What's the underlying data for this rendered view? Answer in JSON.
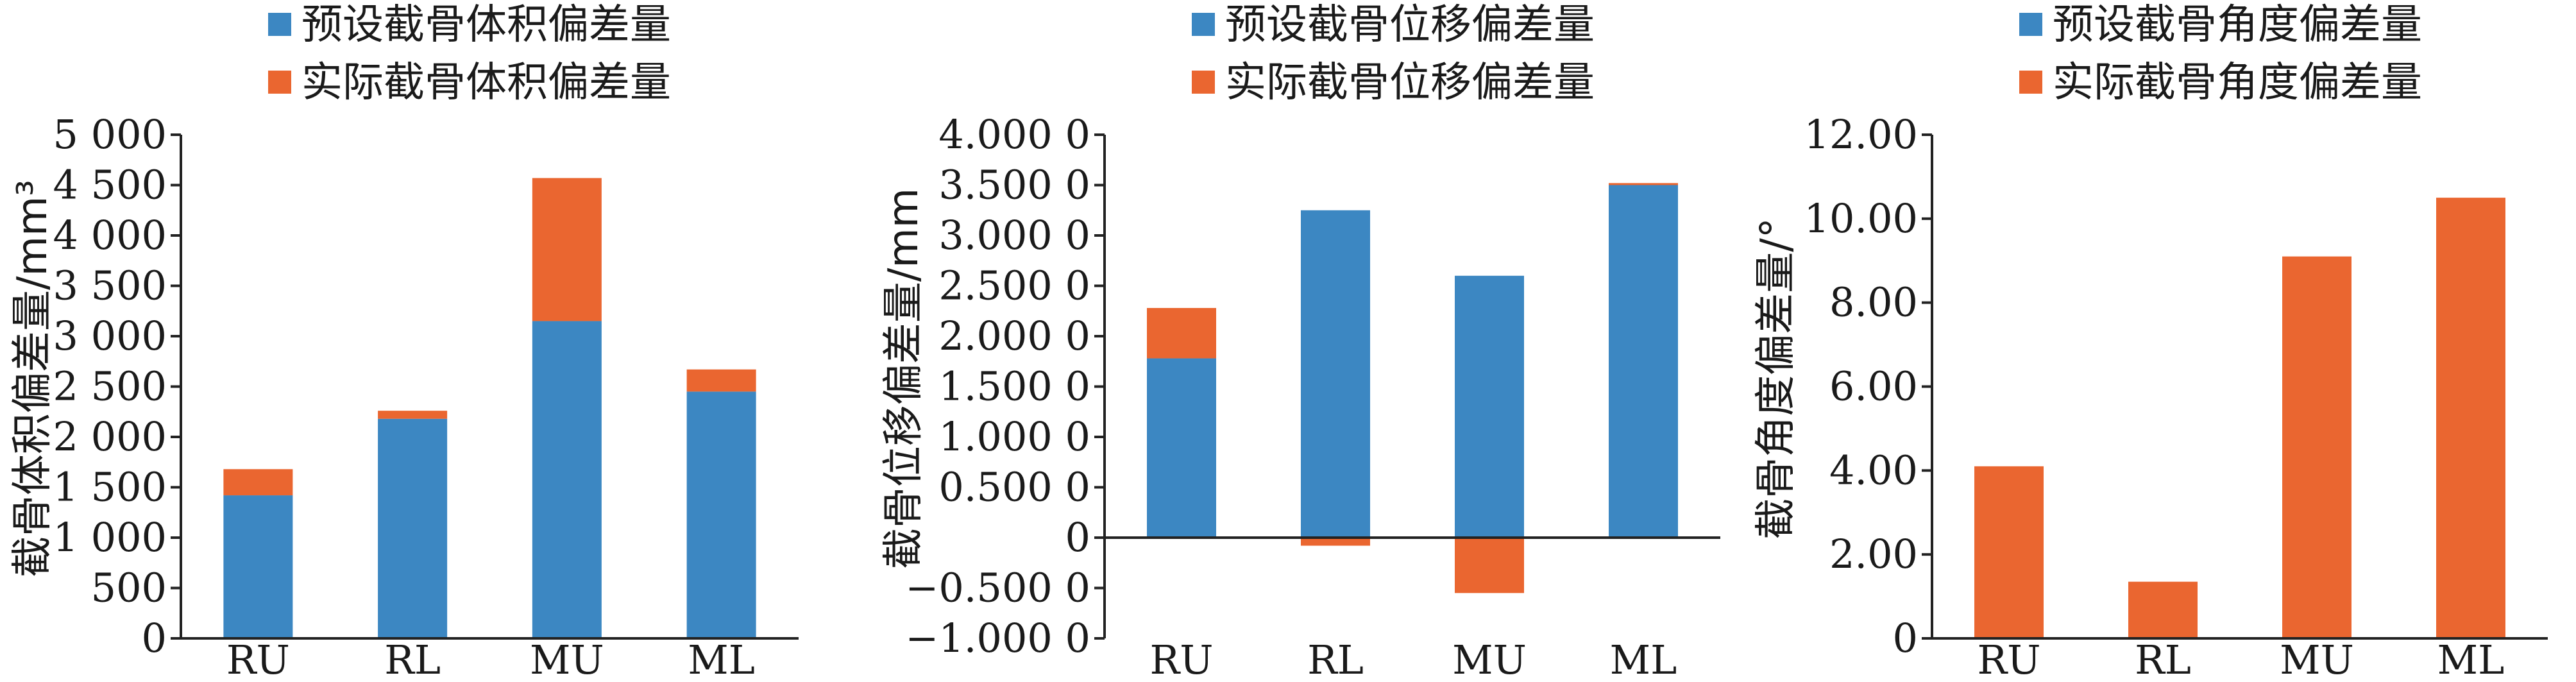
{
  "colors": {
    "preset": "#3c87c2",
    "actual": "#ea6630"
  },
  "chart_data": [
    {
      "type": "bar",
      "stacked": true,
      "ylabel": "截骨体积偏差量/mm³",
      "ylim": [
        0,
        5000
      ],
      "yticks": [
        "0",
        "500",
        "1 000",
        "1 500",
        "2 000",
        "2 500",
        "3 000",
        "3 500",
        "4 000",
        "4 500",
        "5 000"
      ],
      "categories": [
        "RU",
        "RL",
        "MU",
        "ML"
      ],
      "series": [
        {
          "name": "预设截骨体积偏差量",
          "values": [
            1420,
            2180,
            3150,
            2450
          ]
        },
        {
          "name": "实际截骨体积偏差量",
          "values": [
            260,
            80,
            1420,
            220
          ]
        }
      ],
      "legend": "top"
    },
    {
      "type": "bar",
      "stacked": true,
      "ylabel": "截骨位移偏差量/mm",
      "ylim": [
        -1.0,
        4.0
      ],
      "yticks": [
        "−1.000 0",
        "−0.500 0",
        "0",
        "0.500 0",
        "1.000 0",
        "1.500 0",
        "2.000 0",
        "2.500 0",
        "3.000 0",
        "3.500 0",
        "4.000 0"
      ],
      "categories": [
        "RU",
        "RL",
        "MU",
        "ML"
      ],
      "series": [
        {
          "name": "预设截骨位移偏差量",
          "values": [
            1.78,
            3.25,
            2.6,
            3.5
          ]
        },
        {
          "name": "实际截骨位移偏差量",
          "values": [
            0.5,
            -0.08,
            -0.55,
            0.02
          ]
        }
      ],
      "legend": "top"
    },
    {
      "type": "bar",
      "stacked": true,
      "ylabel": "截骨角度偏差量/°",
      "ylim": [
        0,
        12
      ],
      "yticks": [
        "0",
        "2.00",
        "4.00",
        "6.00",
        "8.00",
        "10.00",
        "12.00"
      ],
      "categories": [
        "RU",
        "RL",
        "MU",
        "ML"
      ],
      "series": [
        {
          "name": "预设截骨角度偏差量",
          "values": [
            0,
            0,
            0,
            0
          ]
        },
        {
          "name": "实际截骨角度偏差量",
          "values": [
            4.1,
            1.35,
            9.1,
            10.5
          ]
        }
      ],
      "legend": "top"
    }
  ]
}
